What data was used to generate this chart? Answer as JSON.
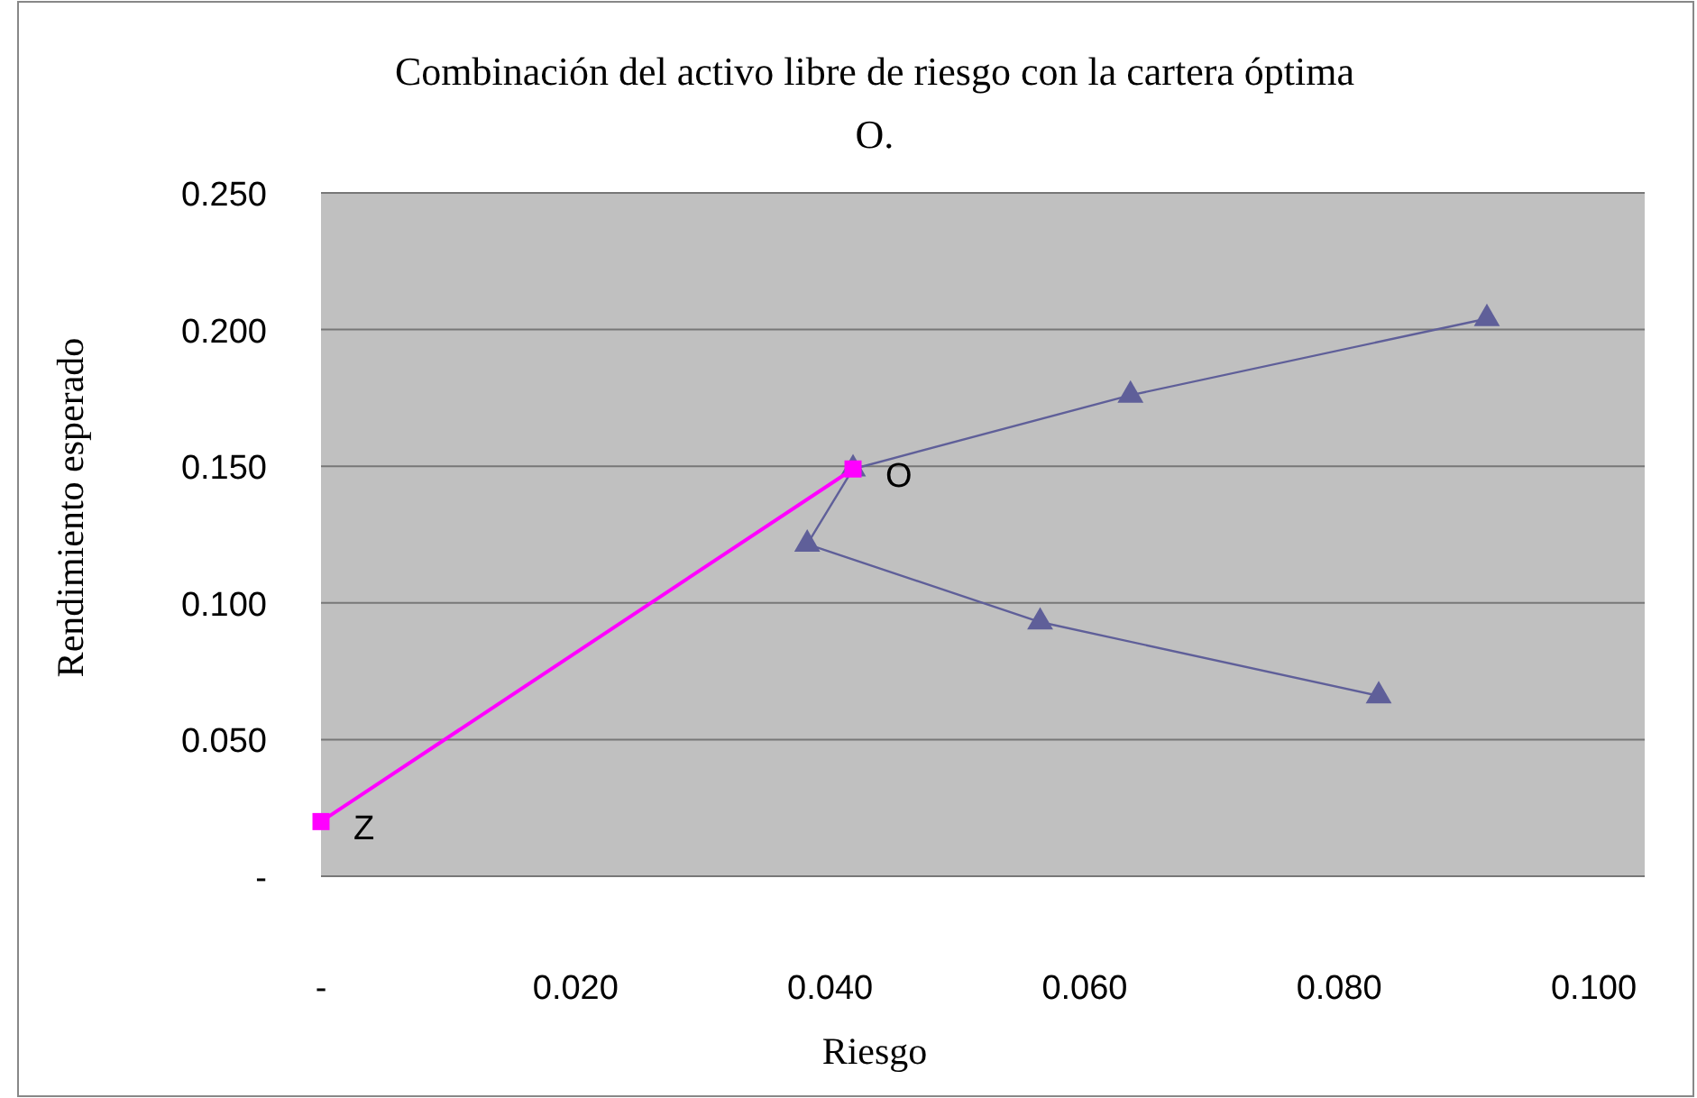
{
  "chart_data": {
    "type": "line",
    "title": "Combinación del activo libre de riesgo con la cartera óptima O.",
    "xlabel": "Riesgo",
    "ylabel": "Rendimiento esperado",
    "series": [
      {
        "color": "#5f5f99",
        "marker": "triangle",
        "x": [
          0.0831,
          0.0565,
          0.0382,
          0.0418,
          0.0636,
          0.0916
        ],
        "values": [
          0.066,
          0.093,
          0.1215,
          0.149,
          0.176,
          0.204
        ]
      },
      {
        "color": "#ff00ff",
        "marker": "square",
        "x": [
          0,
          0.0418
        ],
        "values": [
          0.02,
          0.149
        ]
      }
    ],
    "annotations": [
      {
        "text": "O",
        "x": 0.0418,
        "y": 0.149
      },
      {
        "text": "Z",
        "x": 0,
        "y": 0.02
      }
    ],
    "xlim": [
      0,
      0.104
    ],
    "xticks": [
      {
        "value": 0,
        "label": "-"
      },
      {
        "value": 0.02,
        "label": "0.020"
      },
      {
        "value": 0.04,
        "label": "0.040"
      },
      {
        "value": 0.06,
        "label": "0.060"
      },
      {
        "value": 0.08,
        "label": "0.080"
      },
      {
        "value": 0.1,
        "label": "0.100"
      }
    ],
    "ylim": [
      0,
      0.25
    ],
    "yticks": [
      {
        "value": 0,
        "label": "-"
      },
      {
        "value": 0.05,
        "label": "0.050"
      },
      {
        "value": 0.1,
        "label": "0.100"
      },
      {
        "value": 0.15,
        "label": "0.150"
      },
      {
        "value": 0.2,
        "label": "0.200"
      },
      {
        "value": 0.25,
        "label": "0.250"
      }
    ],
    "grid": "y"
  }
}
